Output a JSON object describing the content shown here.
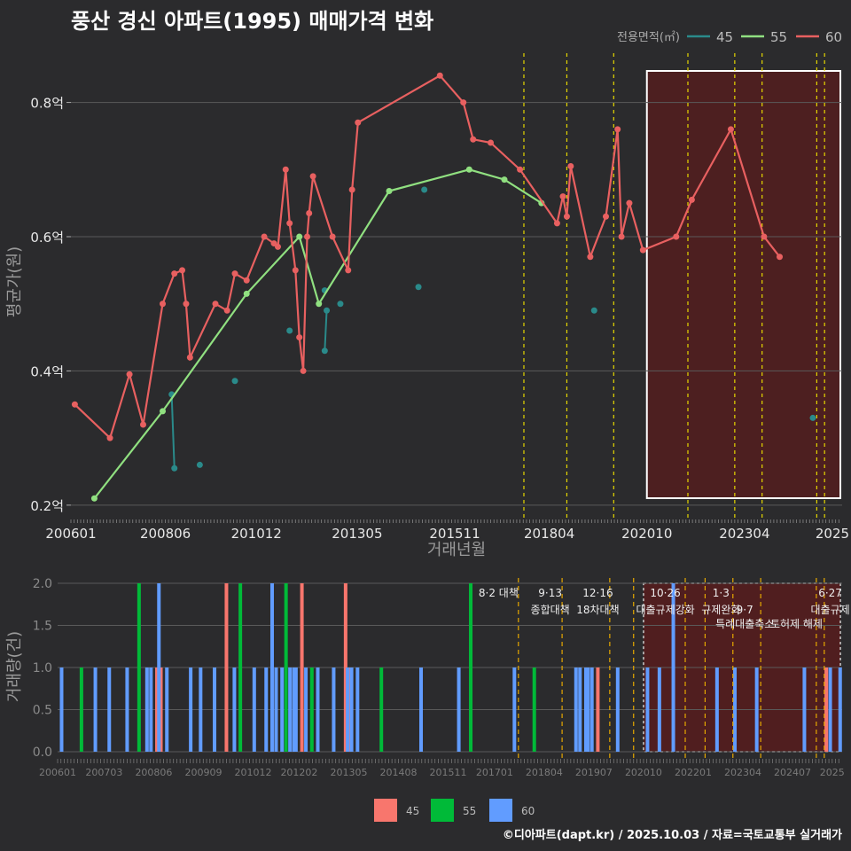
{
  "title": "풍산 경신 아파트(1995) 매매가격 변화",
  "footer": "©디아파트(dapt.kr) / 2025.10.03 / 자료=국토교통부 실거래가",
  "colors": {
    "s45": "#2a8a8a",
    "s55": "#90e080",
    "s60": "#e86060",
    "b45": "#f8766d",
    "b55": "#00ba38",
    "b60": "#619cff",
    "vline": "#e6d800",
    "vline2": "#e6a800",
    "highlight": "#5a1c1c",
    "grid": "#5a5a5a"
  },
  "chart_data": [
    {
      "type": "line",
      "title": "",
      "xlabel": "거래년월",
      "ylabel": "평균가(원)",
      "legend_title": "전용면적(㎡)",
      "legend_position": "top-right",
      "xlim": [
        2006.0,
        2025.75
      ],
      "ylim": [
        0.18,
        0.88
      ],
      "y_ticks": [
        {
          "v": 0.2,
          "l": "0.2억"
        },
        {
          "v": 0.4,
          "l": "0.4억"
        },
        {
          "v": 0.6,
          "l": "0.6억"
        },
        {
          "v": 0.8,
          "l": "0.8억"
        }
      ],
      "x_ticks": [
        {
          "v": 2006.0,
          "l": "200601"
        },
        {
          "v": 2008.42,
          "l": "200806"
        },
        {
          "v": 2010.75,
          "l": "201012"
        },
        {
          "v": 2013.33,
          "l": "201305"
        },
        {
          "v": 2015.83,
          "l": "201511"
        },
        {
          "v": 2018.25,
          "l": "201804"
        },
        {
          "v": 2020.75,
          "l": "202010"
        },
        {
          "v": 2023.25,
          "l": "202304"
        },
        {
          "v": 2025.5,
          "l": "2025"
        }
      ],
      "reference_lines": [
        2017.6,
        2018.7,
        2019.9,
        2021.8,
        2023.0,
        2023.7,
        2025.1,
        2025.3
      ],
      "highlight_range": [
        2020.75,
        2025.75
      ],
      "series": [
        {
          "name": "45",
          "points": [
            [
              2008.58,
              0.365
            ],
            [
              2008.65,
              0.255
            ],
            [
              2009.3,
              0.26
            ],
            [
              2010.2,
              0.385
            ],
            [
              2011.6,
              0.46
            ],
            [
              2012.5,
              0.43
            ],
            [
              2012.55,
              0.49
            ],
            [
              2012.5,
              0.52
            ],
            [
              2012.9,
              0.5
            ],
            [
              2014.9,
              0.525
            ],
            [
              2015.05,
              0.67
            ],
            [
              2019.4,
              0.49
            ],
            [
              2025.0,
              0.33
            ]
          ],
          "line": false
        },
        {
          "name": "55",
          "points": [
            [
              2006.6,
              0.21
            ],
            [
              2008.35,
              0.34
            ],
            [
              2010.5,
              0.515
            ],
            [
              2011.85,
              0.6
            ],
            [
              2012.35,
              0.5
            ],
            [
              2014.15,
              0.668
            ],
            [
              2016.2,
              0.7
            ],
            [
              2017.1,
              0.685
            ],
            [
              2018.05,
              0.65
            ]
          ],
          "line": true
        },
        {
          "name": "60",
          "points": [
            [
              2006.1,
              0.35
            ],
            [
              2007.0,
              0.3
            ],
            [
              2007.5,
              0.395
            ],
            [
              2007.85,
              0.32
            ],
            [
              2008.35,
              0.5
            ],
            [
              2008.65,
              0.545
            ],
            [
              2008.85,
              0.55
            ],
            [
              2008.95,
              0.5
            ],
            [
              2009.05,
              0.42
            ],
            [
              2009.7,
              0.5
            ],
            [
              2010.0,
              0.49
            ],
            [
              2010.2,
              0.545
            ],
            [
              2010.5,
              0.535
            ],
            [
              2010.95,
              0.6
            ],
            [
              2011.2,
              0.59
            ],
            [
              2011.3,
              0.585
            ],
            [
              2011.5,
              0.7
            ],
            [
              2011.6,
              0.62
            ],
            [
              2011.75,
              0.55
            ],
            [
              2011.85,
              0.45
            ],
            [
              2011.95,
              0.4
            ],
            [
              2012.05,
              0.6
            ],
            [
              2012.1,
              0.635
            ],
            [
              2012.2,
              0.69
            ],
            [
              2012.7,
              0.6
            ],
            [
              2013.1,
              0.55
            ],
            [
              2013.2,
              0.67
            ],
            [
              2013.35,
              0.77
            ],
            [
              2015.45,
              0.84
            ],
            [
              2016.05,
              0.8
            ],
            [
              2016.3,
              0.745
            ],
            [
              2016.75,
              0.74
            ],
            [
              2017.5,
              0.7
            ],
            [
              2018.45,
              0.62
            ],
            [
              2018.6,
              0.66
            ],
            [
              2018.7,
              0.63
            ],
            [
              2018.8,
              0.705
            ],
            [
              2019.3,
              0.57
            ],
            [
              2019.7,
              0.63
            ],
            [
              2020.0,
              0.76
            ],
            [
              2020.1,
              0.6
            ],
            [
              2020.3,
              0.65
            ],
            [
              2020.65,
              0.58
            ],
            [
              2021.5,
              0.6
            ],
            [
              2021.9,
              0.655
            ],
            [
              2022.9,
              0.76
            ],
            [
              2023.75,
              0.6
            ],
            [
              2024.15,
              0.57
            ]
          ],
          "line": true
        }
      ]
    },
    {
      "type": "bar",
      "title": "",
      "xlabel": "",
      "ylabel": "거래량(건)",
      "legend_position": "bottom",
      "xlim": [
        2006.0,
        2025.75
      ],
      "ylim": [
        0,
        2.0
      ],
      "y_ticks": [
        {
          "v": 0,
          "l": "0.0"
        },
        {
          "v": 0.5,
          "l": "0.5"
        },
        {
          "v": 1.0,
          "l": "1.0"
        },
        {
          "v": 1.5,
          "l": "1.5"
        },
        {
          "v": 2.0,
          "l": "2.0"
        }
      ],
      "x_ticks": [
        {
          "v": 2006.0,
          "l": "200601"
        },
        {
          "v": 2007.17,
          "l": "200703"
        },
        {
          "v": 2008.42,
          "l": "200806"
        },
        {
          "v": 2009.67,
          "l": "200909"
        },
        {
          "v": 2010.92,
          "l": "201012"
        },
        {
          "v": 2012.08,
          "l": "201202"
        },
        {
          "v": 2013.33,
          "l": "201305"
        },
        {
          "v": 2014.58,
          "l": "201408"
        },
        {
          "v": 2015.83,
          "l": "201511"
        },
        {
          "v": 2017.0,
          "l": "201701"
        },
        {
          "v": 2018.25,
          "l": "201804"
        },
        {
          "v": 2019.5,
          "l": "201907"
        },
        {
          "v": 2020.75,
          "l": "202010"
        },
        {
          "v": 2022.0,
          "l": "202201"
        },
        {
          "v": 2023.25,
          "l": "202304"
        },
        {
          "v": 2024.5,
          "l": "202407"
        },
        {
          "v": 2025.5,
          "l": "2025"
        }
      ],
      "reference_lines": [
        2017.6,
        2018.7,
        2019.9,
        2020.5,
        2021.8,
        2022.3,
        2023.0,
        2023.7,
        2025.1,
        2025.3
      ],
      "highlight_range": [
        2020.75,
        2025.75
      ],
      "annotations": [
        {
          "x": 2017.1,
          "row": 0,
          "text": "8·2 대책"
        },
        {
          "x": 2018.4,
          "row": 0,
          "text": "9·13"
        },
        {
          "x": 2018.4,
          "row": 1,
          "text": "종합대책"
        },
        {
          "x": 2019.6,
          "row": 0,
          "text": "12·16"
        },
        {
          "x": 2019.6,
          "row": 1,
          "text": "18차대책"
        },
        {
          "x": 2021.3,
          "row": 0,
          "text": "10·26"
        },
        {
          "x": 2021.3,
          "row": 1,
          "text": "대출규제강화"
        },
        {
          "x": 2022.7,
          "row": 0,
          "text": "1·3"
        },
        {
          "x": 2022.7,
          "row": 1,
          "text": "규제완화"
        },
        {
          "x": 2023.3,
          "row": 1,
          "text": "9·7"
        },
        {
          "x": 2023.3,
          "row": 2,
          "text": "특례대출축소"
        },
        {
          "x": 2024.6,
          "row": 2,
          "text": "토허제 해제"
        },
        {
          "x": 2025.45,
          "row": 0,
          "text": "6·27"
        },
        {
          "x": 2025.45,
          "row": 1,
          "text": "대출규제"
        }
      ],
      "series": [
        {
          "name": "45",
          "bars": [
            [
              2008.5,
              1
            ],
            [
              2008.6,
              1
            ],
            [
              2010.25,
              2
            ],
            [
              2012.15,
              2
            ],
            [
              2013.25,
              2
            ],
            [
              2013.35,
              1
            ],
            [
              2019.6,
              1
            ],
            [
              2025.35,
              1
            ]
          ]
        },
        {
          "name": "55",
          "bars": [
            [
              2006.6,
              1
            ],
            [
              2008.05,
              2
            ],
            [
              2010.6,
              2
            ],
            [
              2011.75,
              2
            ],
            [
              2012.4,
              1
            ],
            [
              2014.15,
              1
            ],
            [
              2016.4,
              2
            ],
            [
              2018.0,
              1
            ]
          ]
        },
        {
          "name": "60",
          "bars": [
            [
              2006.1,
              1
            ],
            [
              2006.95,
              1
            ],
            [
              2007.3,
              1
            ],
            [
              2007.75,
              1
            ],
            [
              2008.25,
              1
            ],
            [
              2008.35,
              1
            ],
            [
              2008.55,
              2
            ],
            [
              2008.75,
              1
            ],
            [
              2009.35,
              1
            ],
            [
              2009.6,
              1
            ],
            [
              2009.95,
              1
            ],
            [
              2010.45,
              1
            ],
            [
              2010.95,
              1
            ],
            [
              2011.25,
              1
            ],
            [
              2011.4,
              2
            ],
            [
              2011.5,
              1
            ],
            [
              2011.65,
              1
            ],
            [
              2011.85,
              1
            ],
            [
              2011.95,
              1
            ],
            [
              2012.0,
              1
            ],
            [
              2012.25,
              1
            ],
            [
              2012.55,
              1
            ],
            [
              2012.95,
              1
            ],
            [
              2013.3,
              1
            ],
            [
              2013.4,
              1
            ],
            [
              2013.55,
              1
            ],
            [
              2015.15,
              1
            ],
            [
              2016.1,
              1
            ],
            [
              2017.5,
              1
            ],
            [
              2019.05,
              1
            ],
            [
              2019.15,
              1
            ],
            [
              2019.3,
              1
            ],
            [
              2019.35,
              1
            ],
            [
              2019.45,
              1
            ],
            [
              2020.1,
              1
            ],
            [
              2020.85,
              1
            ],
            [
              2021.15,
              1
            ],
            [
              2021.5,
              2
            ],
            [
              2022.6,
              1
            ],
            [
              2023.05,
              1
            ],
            [
              2023.6,
              1
            ],
            [
              2024.8,
              1
            ],
            [
              2025.45,
              1
            ],
            [
              2025.7,
              1
            ]
          ]
        }
      ]
    }
  ]
}
